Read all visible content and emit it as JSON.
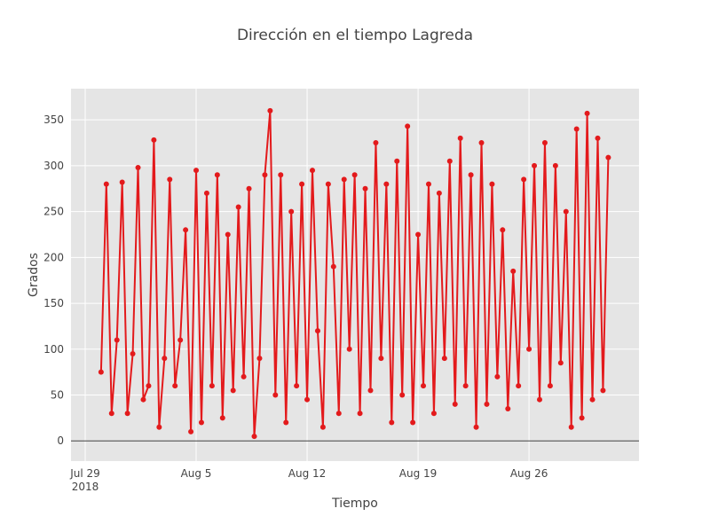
{
  "chart_data": {
    "type": "line",
    "title": "Dirección en el tiempo Lagreda",
    "x_label": "Tiempo",
    "y_label": "Grados",
    "x": [
      "2018-07-30 00:00",
      "2018-07-30 08:00",
      "2018-07-30 16:00",
      "2018-07-31 00:00",
      "2018-07-31 08:00",
      "2018-07-31 16:00",
      "2018-08-01 00:00",
      "2018-08-01 08:00",
      "2018-08-01 16:00",
      "2018-08-02 00:00",
      "2018-08-02 08:00",
      "2018-08-02 16:00",
      "2018-08-03 00:00",
      "2018-08-03 08:00",
      "2018-08-03 16:00",
      "2018-08-04 00:00",
      "2018-08-04 08:00",
      "2018-08-04 16:00",
      "2018-08-05 00:00",
      "2018-08-05 08:00",
      "2018-08-05 16:00",
      "2018-08-06 00:00",
      "2018-08-06 08:00",
      "2018-08-06 16:00",
      "2018-08-07 00:00",
      "2018-08-07 08:00",
      "2018-08-07 16:00",
      "2018-08-08 00:00",
      "2018-08-08 08:00",
      "2018-08-08 16:00",
      "2018-08-09 00:00",
      "2018-08-09 08:00",
      "2018-08-09 16:00",
      "2018-08-10 00:00",
      "2018-08-10 08:00",
      "2018-08-10 16:00",
      "2018-08-11 00:00",
      "2018-08-11 08:00",
      "2018-08-11 16:00",
      "2018-08-12 00:00",
      "2018-08-12 08:00",
      "2018-08-12 16:00",
      "2018-08-13 00:00",
      "2018-08-13 08:00",
      "2018-08-13 16:00",
      "2018-08-14 00:00",
      "2018-08-14 08:00",
      "2018-08-14 16:00",
      "2018-08-15 00:00",
      "2018-08-15 08:00",
      "2018-08-15 16:00",
      "2018-08-16 00:00",
      "2018-08-16 08:00",
      "2018-08-16 16:00",
      "2018-08-17 00:00",
      "2018-08-17 08:00",
      "2018-08-17 16:00",
      "2018-08-18 00:00",
      "2018-08-18 08:00",
      "2018-08-18 16:00",
      "2018-08-19 00:00",
      "2018-08-19 08:00",
      "2018-08-19 16:00",
      "2018-08-20 00:00",
      "2018-08-20 08:00",
      "2018-08-20 16:00",
      "2018-08-21 00:00",
      "2018-08-21 08:00",
      "2018-08-21 16:00",
      "2018-08-22 00:00",
      "2018-08-22 08:00",
      "2018-08-22 16:00",
      "2018-08-23 00:00",
      "2018-08-23 08:00",
      "2018-08-23 16:00",
      "2018-08-24 00:00",
      "2018-08-24 08:00",
      "2018-08-24 16:00",
      "2018-08-25 00:00",
      "2018-08-25 08:00",
      "2018-08-25 16:00",
      "2018-08-26 00:00",
      "2018-08-26 08:00",
      "2018-08-26 16:00",
      "2018-08-27 00:00",
      "2018-08-27 08:00",
      "2018-08-27 16:00",
      "2018-08-28 00:00",
      "2018-08-28 08:00",
      "2018-08-28 16:00",
      "2018-08-29 00:00",
      "2018-08-29 08:00",
      "2018-08-29 16:00",
      "2018-08-30 00:00",
      "2018-08-30 08:00",
      "2018-08-30 16:00",
      "2018-08-31 00:00"
    ],
    "values": [
      75,
      280,
      30,
      110,
      282,
      30,
      95,
      298,
      45,
      60,
      328,
      15,
      90,
      285,
      60,
      110,
      230,
      10,
      295,
      20,
      270,
      60,
      290,
      25,
      225,
      55,
      255,
      70,
      275,
      5,
      90,
      290,
      360,
      50,
      290,
      20,
      250,
      60,
      280,
      45,
      295,
      120,
      15,
      280,
      190,
      30,
      285,
      100,
      290,
      30,
      275,
      55,
      325,
      90,
      280,
      20,
      305,
      50,
      343,
      20,
      225,
      60,
      280,
      30,
      270,
      90,
      305,
      40,
      330,
      60,
      290,
      15,
      325,
      40,
      280,
      70,
      230,
      35,
      185,
      60,
      285,
      100,
      300,
      45,
      325,
      60,
      300,
      85,
      250,
      15,
      340,
      25,
      357,
      45,
      330,
      55,
      309
    ],
    "color": "#e31a1c",
    "xlim": [
      "2018-07-28 02:30",
      "2018-09-01 22:30"
    ],
    "xticks": [
      {
        "value": "2018-07-29",
        "label": "Jul 29\n2018"
      },
      {
        "value": "2018-08-05",
        "label": "Aug 5"
      },
      {
        "value": "2018-08-12",
        "label": "Aug 12"
      },
      {
        "value": "2018-08-19",
        "label": "Aug 19"
      },
      {
        "value": "2018-08-26",
        "label": "Aug 26"
      }
    ],
    "ylim": [
      -22,
      384
    ],
    "yticks": [
      0,
      50,
      100,
      150,
      200,
      250,
      300,
      350
    ],
    "grid": true
  }
}
